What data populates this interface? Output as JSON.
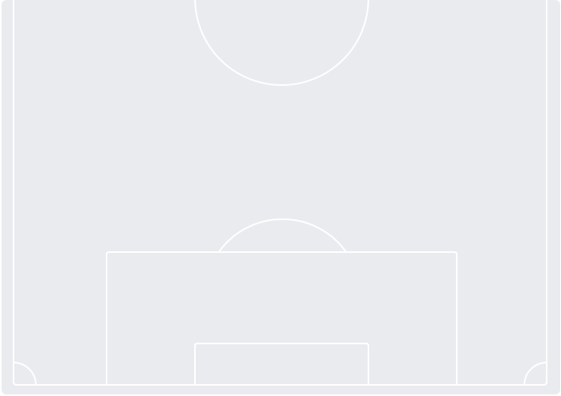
{
  "pitch": {
    "view": "half-pitch",
    "surface_color": "#eaebef",
    "line_color": "#ffffff"
  }
}
